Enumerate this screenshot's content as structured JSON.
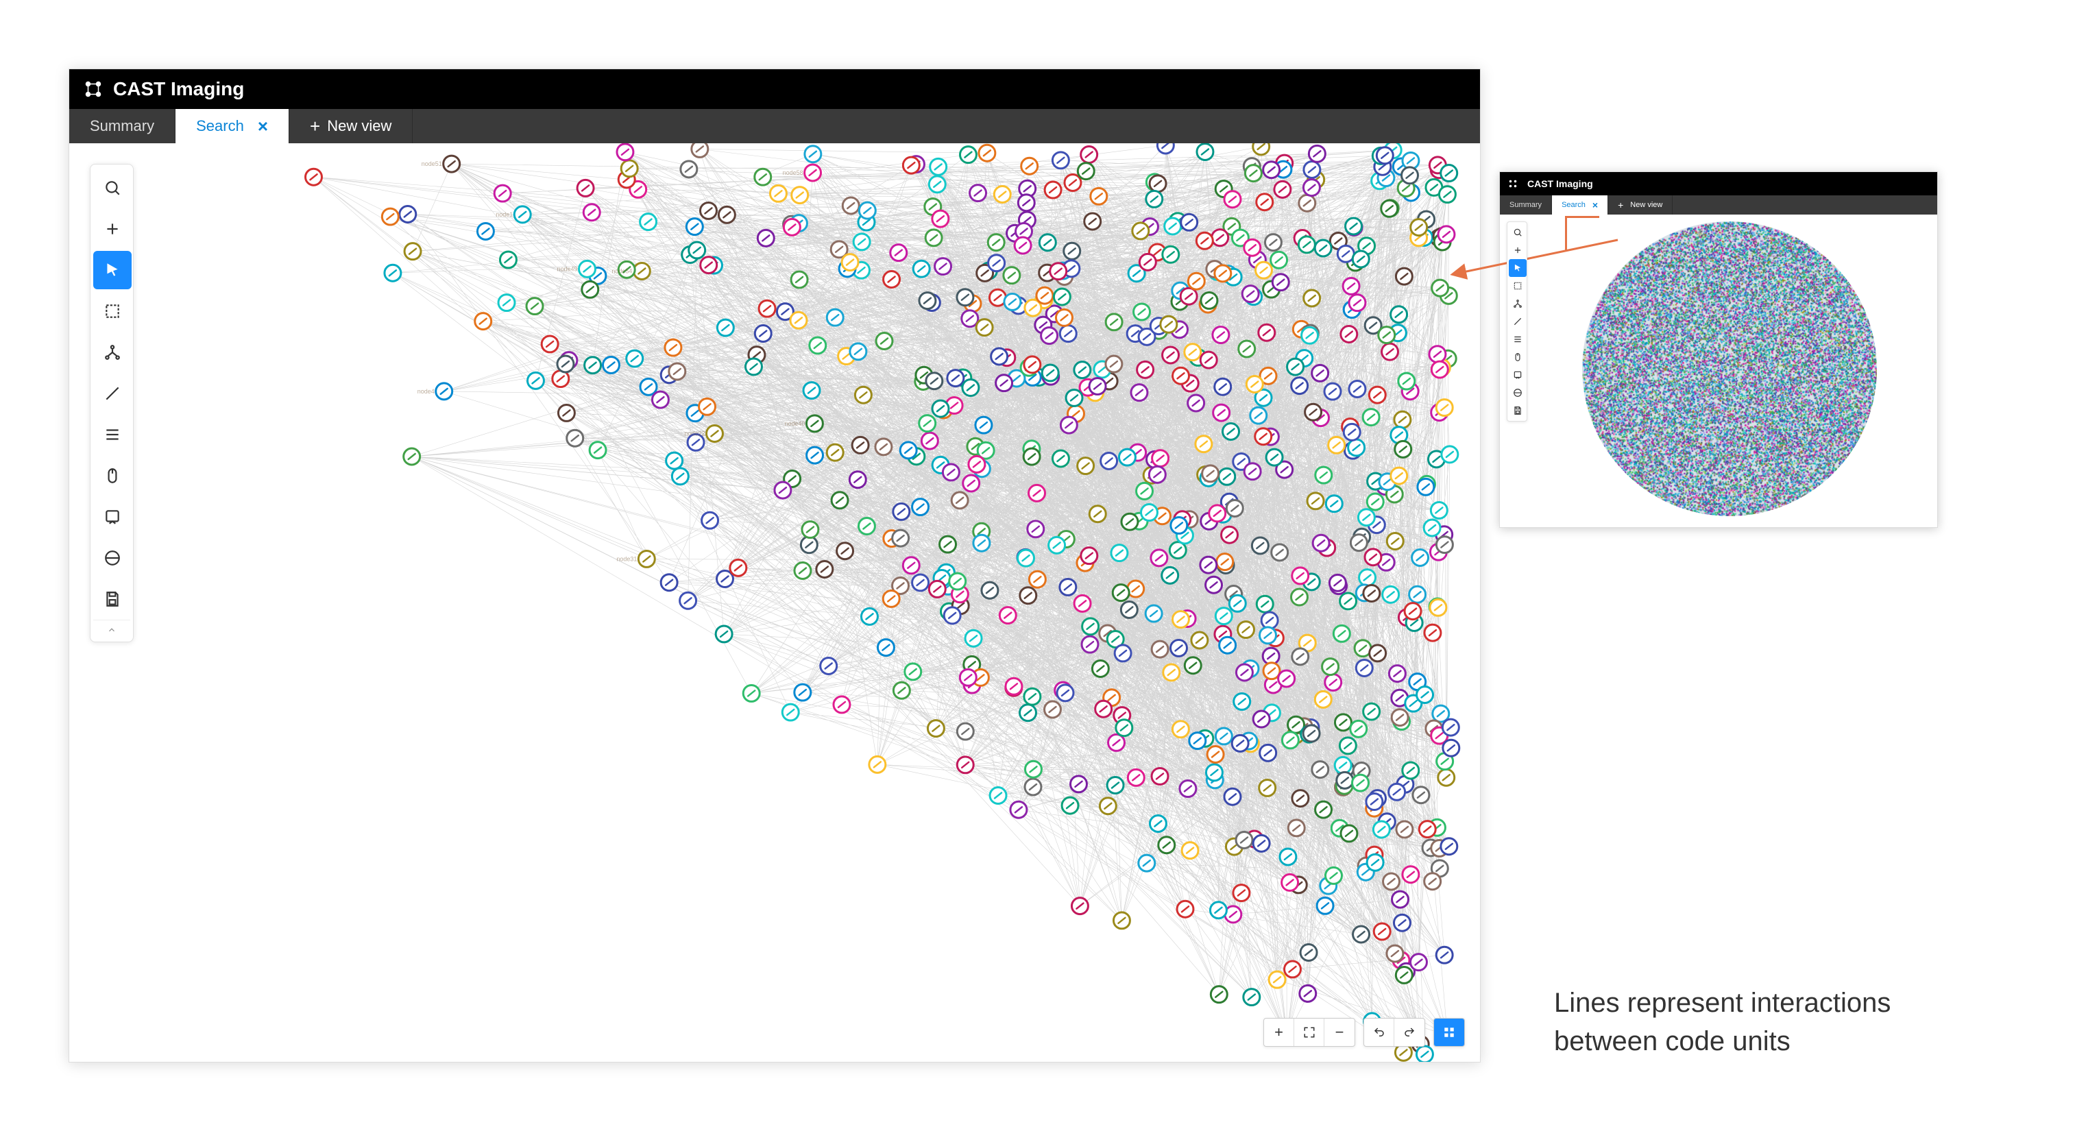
{
  "app": {
    "title": "CAST Imaging",
    "tabs": [
      {
        "label": "Summary",
        "active": false,
        "closable": false
      },
      {
        "label": "Search",
        "active": true,
        "closable": true
      }
    ],
    "new_view_label": "New view"
  },
  "toolbar": {
    "buttons": [
      {
        "name": "search-icon",
        "active": false
      },
      {
        "name": "add-icon",
        "active": false
      },
      {
        "name": "pointer-icon",
        "active": true
      },
      {
        "name": "select-box-icon",
        "active": false
      },
      {
        "name": "tree-icon",
        "active": false
      },
      {
        "name": "line-icon",
        "active": false
      },
      {
        "name": "list-icon",
        "active": false
      },
      {
        "name": "mouse-icon",
        "active": false
      },
      {
        "name": "note-icon",
        "active": false
      },
      {
        "name": "tag-icon",
        "active": false
      },
      {
        "name": "save-icon",
        "active": false
      }
    ]
  },
  "zoom_controls": {
    "group1": [
      "plus-icon",
      "fit-icon",
      "minus-icon"
    ],
    "group2": [
      "undo-icon",
      "redo-icon"
    ],
    "primary": "grid-icon"
  },
  "graph": {
    "type": "network",
    "edge_color": "#888888",
    "edge_opacity": 0.35,
    "edge_width": 0.6,
    "background_color": "#ffffff",
    "node_radius": 12,
    "node_stroke_width": 3,
    "node_fill": "#ffffff",
    "node_count_approx": 700,
    "edge_count_approx": 4000,
    "layout_shape": "triangular-upper-right",
    "label_color": "#7a5c3a",
    "label_fontsize": 9,
    "palette": [
      "#2fbd6b",
      "#1aa6d4",
      "#14c9c9",
      "#c81aa3",
      "#e11d8f",
      "#6e6e6e",
      "#9b8a1a",
      "#3f51b5",
      "#0aa17a",
      "#e5731a",
      "#7b1fa2",
      "#2e7d32",
      "#0288d1",
      "#d32f2f",
      "#455a64",
      "#8d6e63",
      "#009688",
      "#c2185b",
      "#fbc02d",
      "#5d4037",
      "#00acc1",
      "#43a047",
      "#8e24aa",
      "#3949ab"
    ]
  },
  "mini": {
    "title": "CAST Imaging",
    "tabs": [
      {
        "label": "Summary",
        "active": false
      },
      {
        "label": "Search",
        "active": true
      }
    ],
    "new_view_label": "New view",
    "callout_color": "#e57345",
    "speckle_palette": [
      "#2fbd6b",
      "#1aa6d4",
      "#14c9c9",
      "#c81aa3",
      "#e11d8f",
      "#6e6e6e",
      "#9b8a1a",
      "#3f51b5",
      "#0aa17a",
      "#7b1fa2",
      "#0288d1",
      "#455a64",
      "#00acc1",
      "#43a047",
      "#8e24aa",
      "#3949ab",
      "#a0d468",
      "#4fc1e9",
      "#ac92ec",
      "#ec87c0",
      "#48cfad",
      "#5d9cec"
    ]
  },
  "arrow": {
    "color": "#e57345",
    "width": 3
  },
  "caption": {
    "line1": "Lines represent interactions",
    "line2": "between code units",
    "color": "#333333",
    "fontsize": 40
  }
}
